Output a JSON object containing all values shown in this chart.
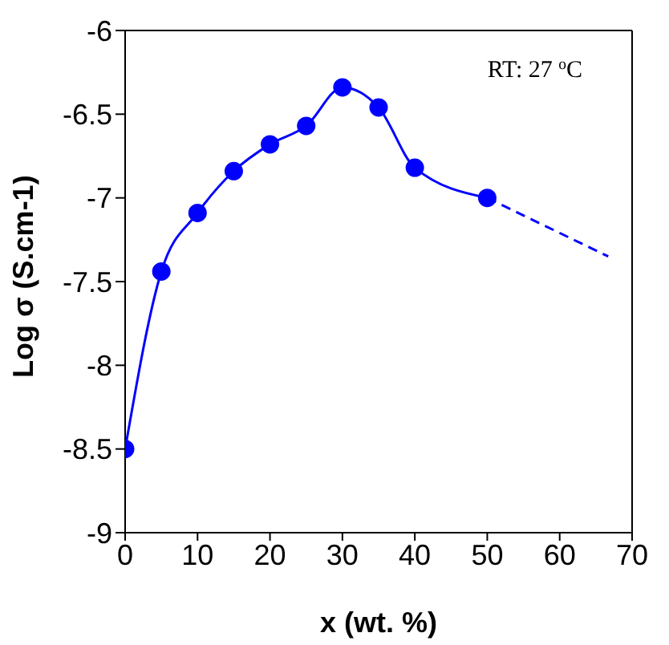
{
  "chart_data": {
    "type": "line",
    "xlabel": "x (wt. %)",
    "ylabel": "Log σ (S.cm-1)",
    "annotations": [
      "RT: 27 $^{o}$C"
    ],
    "x": [
      0,
      5,
      10,
      15,
      20,
      25,
      30,
      35,
      40,
      50
    ],
    "xlim": [
      0,
      70
    ],
    "xticks": [
      0,
      10,
      20,
      30,
      40,
      50,
      60,
      70
    ],
    "ylim": [
      -9,
      -6
    ],
    "yticks": [
      -9,
      -8.5,
      -8,
      -7.5,
      -7,
      -6.5,
      -6
    ],
    "marker": "circle",
    "line_style": "solid",
    "series": [
      {
        "color": "#0000ff",
        "values": [
          -8.5,
          -7.44,
          -7.09,
          -6.84,
          -6.68,
          -6.57,
          -6.34,
          -6.46,
          -6.82,
          -7.0
        ]
      },
      {
        "type": "line",
        "color": "#0000ff",
        "x": [
          50,
          66.7
        ],
        "values": [
          -7.0,
          -7.35
        ],
        "line_style": "dashed",
        "marker": "none"
      }
    ]
  }
}
